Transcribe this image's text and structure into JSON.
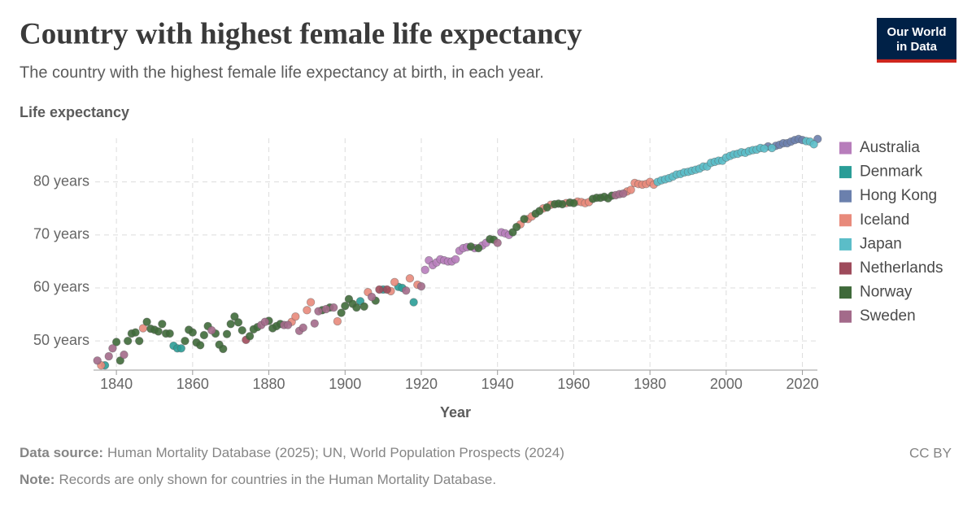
{
  "chart_data": {
    "type": "scatter",
    "title": "Country with highest female life expectancy",
    "subtitle": "The country with the highest female life expectancy at birth, in each year.",
    "y_label": "Life expectancy",
    "x_label": "Year",
    "xlim": [
      1834,
      2025
    ],
    "xticks": [
      1840,
      1860,
      1880,
      1900,
      1920,
      1940,
      1960,
      1980,
      2000,
      2020
    ],
    "ylim": [
      44.5,
      89
    ],
    "yticks": [
      {
        "value": 50,
        "label": "50 years"
      },
      {
        "value": 60,
        "label": "60 years"
      },
      {
        "value": 70,
        "label": "70 years"
      },
      {
        "value": 80,
        "label": "80 years"
      }
    ],
    "grid": true,
    "legend": "right",
    "series": [
      {
        "name": "Australia",
        "color": "#b77dbb",
        "x": [
          1921,
          1922,
          1923,
          1924,
          1925,
          1926,
          1927,
          1928,
          1929,
          1930,
          1931,
          1932,
          1934,
          1936,
          1937,
          1941,
          1942,
          1943
        ],
        "values": [
          63.4,
          65.2,
          64.3,
          64.8,
          65.4,
          65.2,
          65.0,
          65.0,
          65.4,
          67.0,
          67.5,
          67.7,
          67.5,
          68.0,
          68.5,
          70.5,
          70.3,
          70.0
        ]
      },
      {
        "name": "Denmark",
        "color": "#2a9d97",
        "x": [
          1837,
          1855,
          1856,
          1857,
          1904,
          1910,
          1914,
          1915,
          1918
        ],
        "values": [
          45.4,
          49.1,
          48.6,
          48.6,
          57.5,
          59.7,
          60.2,
          60.0,
          57.3
        ]
      },
      {
        "name": "Hong Kong",
        "color": "#6b80ad",
        "x": [
          2011,
          2013,
          2014,
          2015,
          2016,
          2017,
          2018,
          2019,
          2020,
          2024
        ],
        "values": [
          86.7,
          86.8,
          87.0,
          87.3,
          87.3,
          87.6,
          87.9,
          88.1,
          87.9,
          88.1
        ]
      },
      {
        "name": "Iceland",
        "color": "#e88a7b",
        "x": [
          1836,
          1847,
          1886,
          1887,
          1890,
          1891,
          1898,
          1906,
          1912,
          1913,
          1917,
          1919,
          1946,
          1948,
          1949,
          1952,
          1954,
          1958,
          1961,
          1962,
          1963,
          1964,
          1974,
          1975,
          1976,
          1977,
          1978,
          1979,
          1980,
          1981
        ],
        "values": [
          45.4,
          52.4,
          53.6,
          54.6,
          55.8,
          57.3,
          53.7,
          59.2,
          59.4,
          61.1,
          61.8,
          60.6,
          72.0,
          73.0,
          73.5,
          75.0,
          75.7,
          76.0,
          76.3,
          76.2,
          76.0,
          76.2,
          78.2,
          78.5,
          79.8,
          79.6,
          79.5,
          79.6,
          80.0,
          79.5
        ]
      },
      {
        "name": "Japan",
        "color": "#5bbdc8",
        "x": [
          1982,
          1983,
          1984,
          1985,
          1986,
          1987,
          1988,
          1989,
          1990,
          1991,
          1992,
          1993,
          1994,
          1995,
          1996,
          1997,
          1998,
          1999,
          2000,
          2001,
          2002,
          2003,
          2004,
          2005,
          2006,
          2007,
          2008,
          2009,
          2010,
          2012,
          2021,
          2022,
          2023
        ],
        "values": [
          80.0,
          80.3,
          80.5,
          80.7,
          81.0,
          81.4,
          81.5,
          81.8,
          81.9,
          82.1,
          82.3,
          82.5,
          82.9,
          82.9,
          83.6,
          83.8,
          84.0,
          84.0,
          84.6,
          84.9,
          85.2,
          85.3,
          85.6,
          85.5,
          85.8,
          86.0,
          86.1,
          86.4,
          86.3,
          86.4,
          87.7,
          87.6,
          87.1
        ]
      },
      {
        "name": "Netherlands",
        "color": "#9e4b5b",
        "x": [
          1874,
          1909,
          1911
        ],
        "values": [
          50.2,
          59.7,
          59.7
        ]
      },
      {
        "name": "Norway",
        "color": "#3f6a3a",
        "x": [
          1840,
          1841,
          1843,
          1844,
          1845,
          1846,
          1848,
          1849,
          1850,
          1851,
          1852,
          1853,
          1854,
          1858,
          1859,
          1860,
          1861,
          1862,
          1863,
          1864,
          1866,
          1867,
          1868,
          1869,
          1870,
          1871,
          1872,
          1873,
          1875,
          1876,
          1877,
          1880,
          1881,
          1882,
          1883,
          1894,
          1896,
          1899,
          1900,
          1901,
          1902,
          1903,
          1905,
          1908,
          1933,
          1935,
          1938,
          1939,
          1944,
          1945,
          1947,
          1950,
          1951,
          1953,
          1955,
          1956,
          1957,
          1959,
          1960,
          1965,
          1966,
          1967,
          1968,
          1969,
          1970
        ],
        "values": [
          49.8,
          46.3,
          50.0,
          51.4,
          51.6,
          50.0,
          53.6,
          52.3,
          52.1,
          51.8,
          53.2,
          51.4,
          51.4,
          50.0,
          52.1,
          51.6,
          49.7,
          49.2,
          51.1,
          52.8,
          51.4,
          49.3,
          48.5,
          51.3,
          53.2,
          54.6,
          53.5,
          52.0,
          50.9,
          52.2,
          52.6,
          53.8,
          52.4,
          52.8,
          53.2,
          55.8,
          56.3,
          55.3,
          56.6,
          57.9,
          57.0,
          56.3,
          56.5,
          57.6,
          67.8,
          67.5,
          69.2,
          69.1,
          70.5,
          71.5,
          73.0,
          74.0,
          74.5,
          75.2,
          75.8,
          75.9,
          75.8,
          76.1,
          76.0,
          76.8,
          77.0,
          77.0,
          77.2,
          76.9,
          77.4
        ]
      },
      {
        "name": "Sweden",
        "color": "#a36a8a",
        "x": [
          1835,
          1838,
          1839,
          1842,
          1865,
          1878,
          1879,
          1884,
          1885,
          1888,
          1889,
          1892,
          1893,
          1895,
          1897,
          1907,
          1916,
          1920,
          1940,
          1971,
          1972,
          1973
        ],
        "values": [
          46.3,
          47.1,
          48.6,
          47.4,
          52.0,
          53.0,
          53.6,
          53.0,
          53.0,
          51.9,
          52.5,
          53.3,
          55.6,
          56.0,
          56.3,
          58.3,
          59.5,
          60.3,
          68.5,
          77.5,
          77.7,
          77.8
        ]
      }
    ]
  },
  "logo": {
    "line1": "Our World",
    "line2": "in Data"
  },
  "footer": {
    "source_label": "Data source:",
    "source": "Human Mortality Database (2025); UN, World Population Prospects (2024)",
    "note_label": "Note:",
    "note": "Records are only shown for countries in the Human Mortality Database.",
    "license": "CC BY"
  }
}
